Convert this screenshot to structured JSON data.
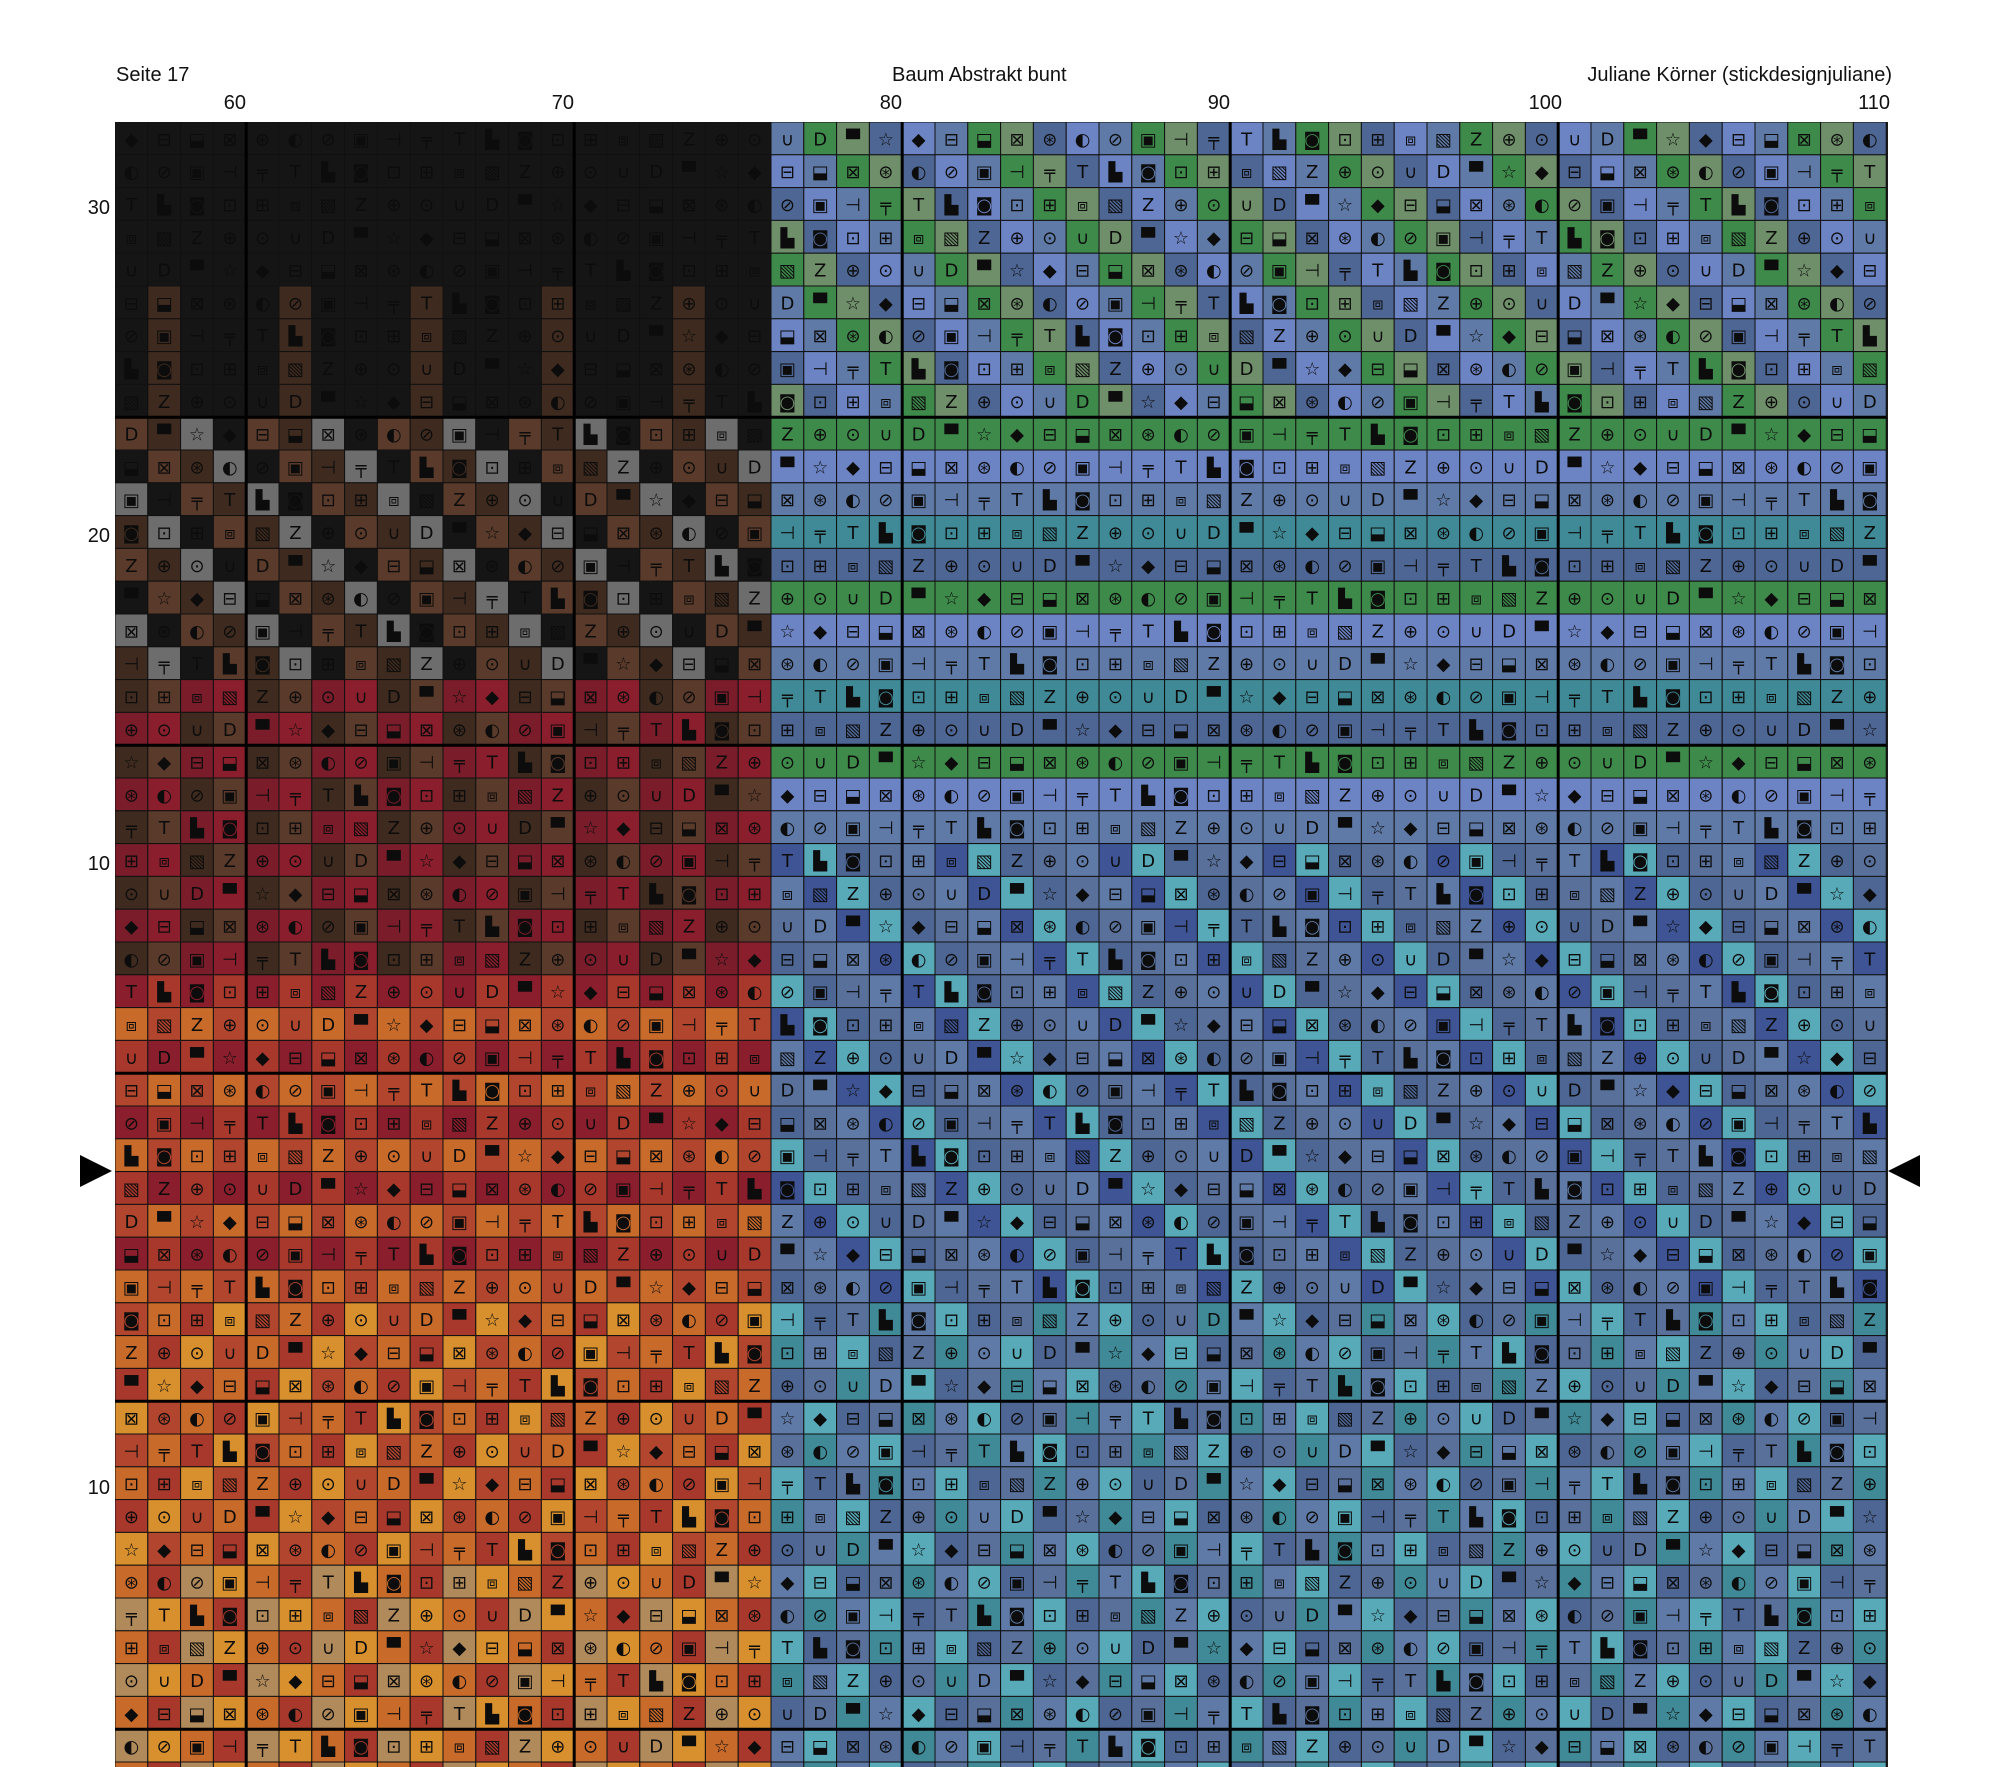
{
  "header": {
    "page_label": "Seite 17",
    "pattern_title": "Baum Abstrakt bunt",
    "designer": "Juliane Körner (stickdesignjuliane)"
  },
  "column_numbers": {
    "c60": "60",
    "c70": "70",
    "c80": "80",
    "c90": "90",
    "c100": "100",
    "c110": "110"
  },
  "row_numbers": {
    "r30": "30",
    "r20": "20",
    "r10_upper": "10",
    "r10_lower": "10"
  },
  "center_markers": {
    "left": "center-row-arrow",
    "right": "center-row-arrow"
  },
  "pattern": {
    "first_column": 57,
    "last_column": 110,
    "legend_note": "colored cross-stitch cells with symbol glyphs",
    "symbols": [
      "◆",
      "▙",
      "▀",
      "╤",
      "∪",
      "▣",
      "⊕",
      "◐",
      "▧",
      "⊠",
      "⊞",
      "⊟",
      "◙",
      "☆",
      "T",
      "D",
      "⊣",
      "⊙",
      "⊘",
      "Z",
      "⊛",
      "⧈",
      "⬓",
      "⊡"
    ],
    "colors": {
      "black": "#151515",
      "dark_brown": "#3e2a1e",
      "mid_brown": "#5a3a2a",
      "maroon": "#7a1c2a",
      "crimson": "#8a1e2c",
      "red": "#a8382c",
      "brick": "#b2452e",
      "orange": "#c76a2a",
      "amber": "#d8902e",
      "tan": "#b08a5a",
      "olive": "#8a8a2a",
      "grey": "#6d6d6d",
      "steel_blue": "#5f7aa6",
      "slate": "#4e6694",
      "periwinkle": "#6d84c4",
      "blue_grey": "#58709a",
      "teal": "#3f8a96",
      "cyan": "#58aab8",
      "green": "#3e8a4a",
      "sage": "#6f8f6a",
      "yellow": "#b8b43a",
      "indigo": "#3e5494"
    }
  }
}
